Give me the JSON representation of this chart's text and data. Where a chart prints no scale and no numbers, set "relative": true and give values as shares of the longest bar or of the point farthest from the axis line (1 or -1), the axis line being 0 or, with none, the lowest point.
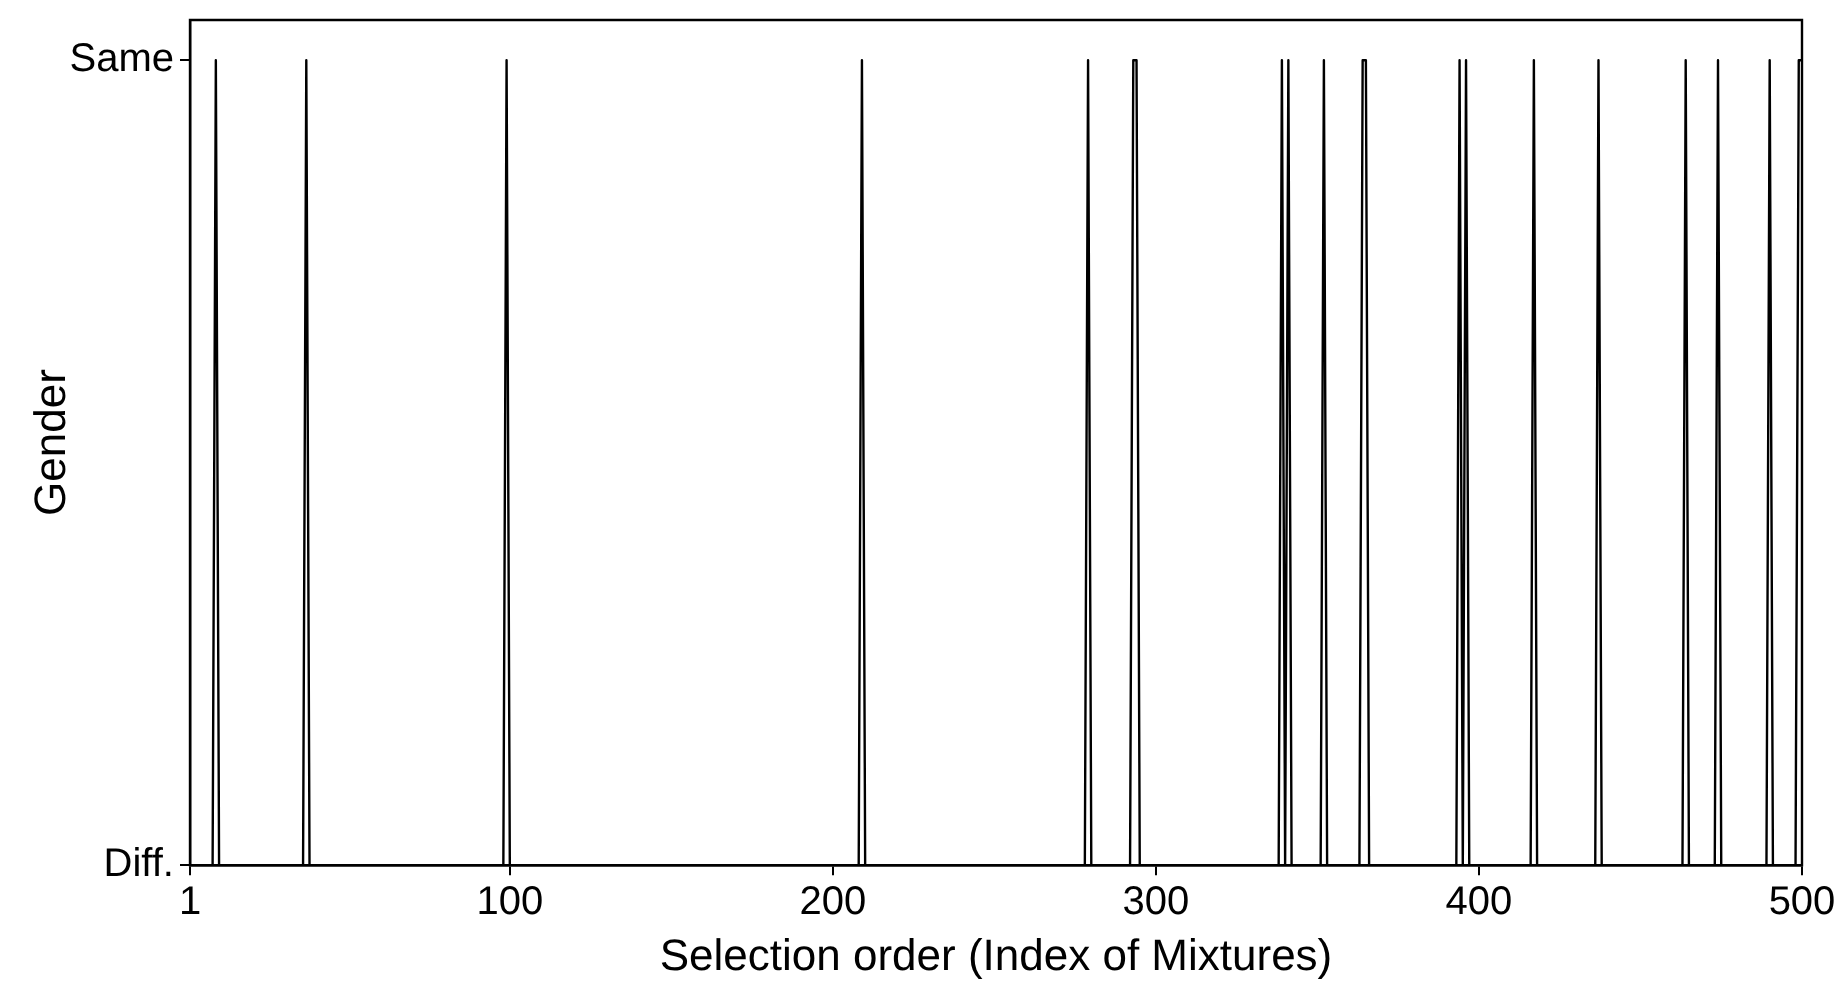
{
  "chart_data": {
    "type": "line",
    "xlabel": "Selection order (Index of Mixtures)",
    "ylabel": "Gender",
    "x": [
      1,
      8,
      9,
      10,
      36,
      37,
      38,
      98,
      99,
      100,
      208,
      209,
      210,
      278,
      279,
      280,
      292,
      293,
      294,
      295,
      338,
      339,
      340,
      341,
      342,
      351,
      352,
      353,
      363,
      364,
      365,
      366,
      393,
      394,
      395,
      396,
      397,
      416,
      417,
      418,
      436,
      437,
      438,
      463,
      464,
      465,
      473,
      474,
      475,
      489,
      490,
      491,
      498,
      499,
      500
    ],
    "series": [
      {
        "color": "#000000",
        "values": [
          0,
          0,
          1,
          0,
          0,
          1,
          0,
          0,
          1,
          0,
          0,
          1,
          0,
          0,
          1,
          0,
          0,
          1,
          1,
          0,
          0,
          1,
          0,
          1,
          0,
          0,
          1,
          0,
          0,
          1,
          1,
          0,
          0,
          1,
          0,
          1,
          0,
          0,
          1,
          0,
          0,
          1,
          0,
          0,
          1,
          0,
          0,
          1,
          0,
          0,
          1,
          0,
          0,
          1,
          1
        ]
      }
    ],
    "xlim": [
      1,
      500
    ],
    "xticks": [
      1,
      100,
      200,
      300,
      400,
      500
    ],
    "relative": true,
    "y_categories": [
      "Same",
      "Diff."
    ],
    "grid": false,
    "legend": false,
    "marker": "none",
    "line_style": "solid"
  }
}
